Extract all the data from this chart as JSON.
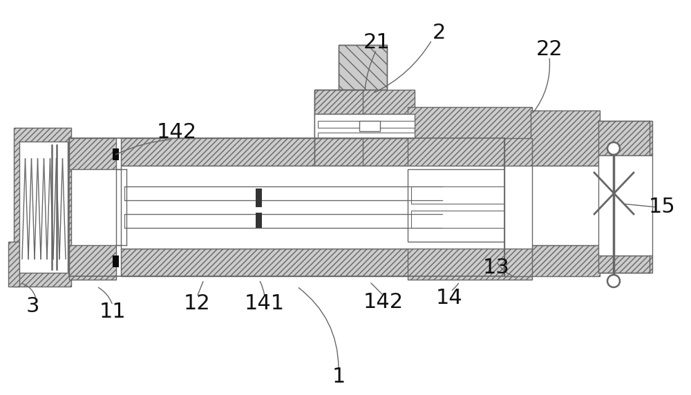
{
  "bg_color": "#ffffff",
  "lc": "#666666",
  "hc": "#cccccc",
  "bc": "#111111",
  "fs": 22,
  "lbl": "#111111"
}
